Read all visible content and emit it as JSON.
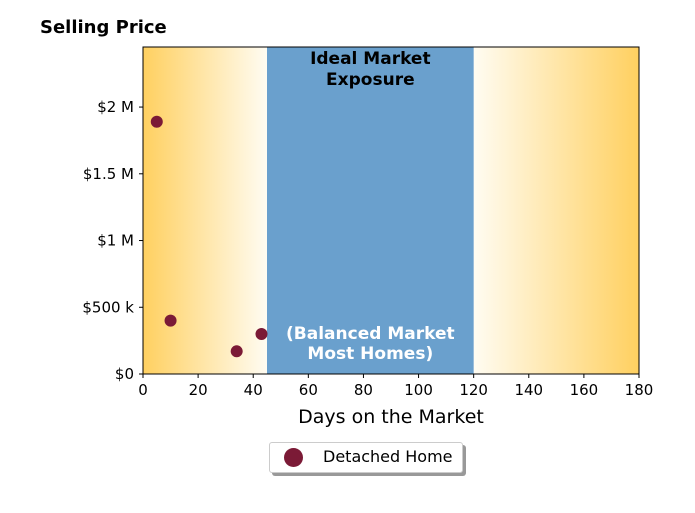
{
  "chart_data": {
    "type": "scatter",
    "ylabel": "Selling Price",
    "xlabel": "Days on the Market",
    "xlim": [
      0,
      180
    ],
    "ylim": [
      0,
      2450000
    ],
    "x_ticks": [
      0,
      20,
      40,
      60,
      80,
      100,
      120,
      140,
      160,
      180
    ],
    "x_tick_labels": [
      "0",
      "20",
      "40",
      "60",
      "80",
      "100",
      "120",
      "140",
      "160",
      "180"
    ],
    "y_ticks": [
      0,
      500000,
      1000000,
      1500000,
      2000000
    ],
    "y_tick_labels": [
      "$0",
      "$500 k",
      "$1 M",
      "$1.5 M",
      "$2 M"
    ],
    "grid": false,
    "ideal_band": {
      "x_range": [
        45,
        120
      ],
      "color": "#6aa0cd",
      "title": [
        "Ideal Market",
        "Exposure"
      ],
      "subtitle": [
        "(Balanced Market",
        "Most Homes)"
      ]
    },
    "background_gradient": {
      "edge_color": "#ffd060",
      "center_color": "#fffcf2"
    },
    "series": [
      {
        "name": "Detached Home",
        "color": "#7b1a36",
        "points": [
          {
            "x": 5,
            "y": 1890000
          },
          {
            "x": 10,
            "y": 400000
          },
          {
            "x": 34,
            "y": 170000
          },
          {
            "x": 43,
            "y": 300000
          }
        ]
      }
    ],
    "legend_position": "bottom-center"
  }
}
